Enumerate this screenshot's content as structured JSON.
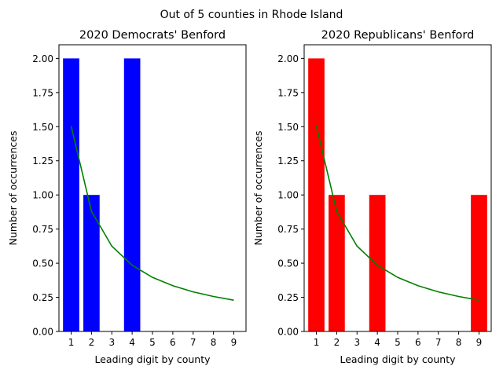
{
  "suptitle": "Out of 5 counties in Rhode Island",
  "chart_data": [
    {
      "type": "bar",
      "title": "2020 Democrats' Benford",
      "xlabel": "Leading digit by county",
      "ylabel": "Number of occurrences",
      "categories": [
        1,
        2,
        3,
        4,
        5,
        6,
        7,
        8,
        9
      ],
      "values": [
        2,
        1,
        0,
        2,
        0,
        0,
        0,
        0,
        0
      ],
      "bar_color": "#0000ff",
      "expected_line": {
        "color": "#008000",
        "values": [
          1.505,
          0.88,
          0.625,
          0.485,
          0.396,
          0.335,
          0.29,
          0.256,
          0.229
        ]
      },
      "xticks": [
        "1",
        "2",
        "3",
        "4",
        "5",
        "6",
        "7",
        "8",
        "9"
      ],
      "yticks": [
        "0.00",
        "0.25",
        "0.50",
        "0.75",
        "1.00",
        "1.25",
        "1.50",
        "1.75",
        "2.00"
      ],
      "ylim": [
        0,
        2.1
      ]
    },
    {
      "type": "bar",
      "title": "2020 Republicans' Benford",
      "xlabel": "Leading digit by county",
      "ylabel": "Number of occurrences",
      "categories": [
        1,
        2,
        3,
        4,
        5,
        6,
        7,
        8,
        9
      ],
      "values": [
        2,
        1,
        0,
        1,
        0,
        0,
        0,
        0,
        1
      ],
      "bar_color": "#ff0000",
      "expected_line": {
        "color": "#008000",
        "values": [
          1.505,
          0.88,
          0.625,
          0.485,
          0.396,
          0.335,
          0.29,
          0.256,
          0.229
        ]
      },
      "xticks": [
        "1",
        "2",
        "3",
        "4",
        "5",
        "6",
        "7",
        "8",
        "9"
      ],
      "yticks": [
        "0.00",
        "0.25",
        "0.50",
        "0.75",
        "1.00",
        "1.25",
        "1.50",
        "1.75",
        "2.00"
      ],
      "ylim": [
        0,
        2.1
      ]
    }
  ]
}
